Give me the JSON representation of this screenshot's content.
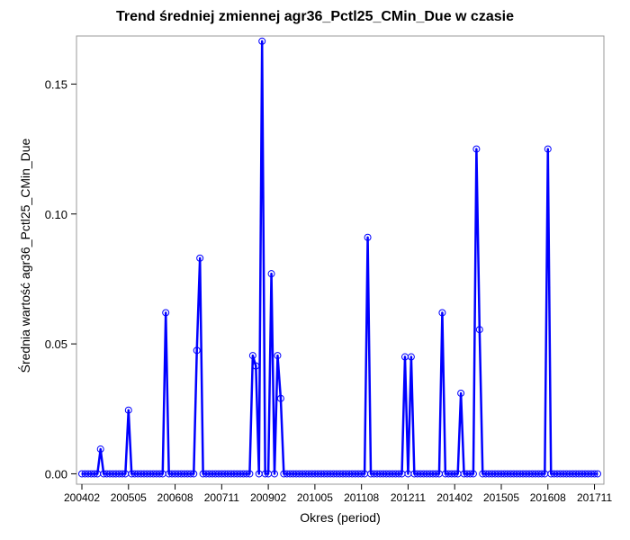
{
  "chart_data": {
    "type": "line",
    "title": "Trend średniej zmiennej agr36_Pctl25_CMin_Due w czasie",
    "xlabel": "Okres (period)",
    "ylabel": "Średnia wartość agr36_Pctl25_CMin_Due",
    "x_start": "200402",
    "x_end": "201712",
    "x_ticks": [
      "200402",
      "200505",
      "200608",
      "200711",
      "200902",
      "201005",
      "201108",
      "201211",
      "201402",
      "201505",
      "201608",
      "201711"
    ],
    "y_ticks": [
      "0.00",
      "0.05",
      "0.10",
      "0.15"
    ],
    "ylim": [
      -0.004,
      0.1685
    ],
    "grid": false,
    "series": [
      {
        "color": "#0000ff",
        "points": [
          [
            "200402",
            0
          ],
          [
            "200403",
            0
          ],
          [
            "200404",
            0
          ],
          [
            "200405",
            0
          ],
          [
            "200406",
            0
          ],
          [
            "200407",
            0
          ],
          [
            "200408",
            0.0095
          ],
          [
            "200409",
            0
          ],
          [
            "200410",
            0
          ],
          [
            "200411",
            0
          ],
          [
            "200412",
            0
          ],
          [
            "200501",
            0
          ],
          [
            "200502",
            0
          ],
          [
            "200503",
            0
          ],
          [
            "200504",
            0
          ],
          [
            "200505",
            0.0245
          ],
          [
            "200506",
            0
          ],
          [
            "200507",
            0
          ],
          [
            "200508",
            0
          ],
          [
            "200509",
            0
          ],
          [
            "200510",
            0
          ],
          [
            "200511",
            0
          ],
          [
            "200512",
            0
          ],
          [
            "200601",
            0
          ],
          [
            "200602",
            0
          ],
          [
            "200603",
            0
          ],
          [
            "200604",
            0
          ],
          [
            "200605",
            0.062
          ],
          [
            "200606",
            0
          ],
          [
            "200607",
            0
          ],
          [
            "200608",
            0
          ],
          [
            "200609",
            0
          ],
          [
            "200610",
            0
          ],
          [
            "200611",
            0
          ],
          [
            "200612",
            0
          ],
          [
            "200701",
            0
          ],
          [
            "200702",
            0
          ],
          [
            "200703",
            0.0475
          ],
          [
            "200704",
            0.083
          ],
          [
            "200705",
            0
          ],
          [
            "200706",
            0
          ],
          [
            "200707",
            0
          ],
          [
            "200708",
            0
          ],
          [
            "200709",
            0
          ],
          [
            "200710",
            0
          ],
          [
            "200711",
            0
          ],
          [
            "200712",
            0
          ],
          [
            "200801",
            0
          ],
          [
            "200802",
            0
          ],
          [
            "200803",
            0
          ],
          [
            "200804",
            0
          ],
          [
            "200805",
            0
          ],
          [
            "200806",
            0
          ],
          [
            "200807",
            0
          ],
          [
            "200808",
            0
          ],
          [
            "200809",
            0.0455
          ],
          [
            "200810",
            0.0415
          ],
          [
            "200811",
            0
          ],
          [
            "200812",
            0.1665
          ],
          [
            "200901",
            0
          ],
          [
            "200902",
            0
          ],
          [
            "200903",
            0.077
          ],
          [
            "200904",
            0
          ],
          [
            "200905",
            0.0455
          ],
          [
            "200906",
            0.029
          ],
          [
            "200907",
            0
          ],
          [
            "200908",
            0
          ],
          [
            "200909",
            0
          ],
          [
            "200910",
            0
          ],
          [
            "200911",
            0
          ],
          [
            "200912",
            0
          ],
          [
            "201001",
            0
          ],
          [
            "201002",
            0
          ],
          [
            "201003",
            0
          ],
          [
            "201004",
            0
          ],
          [
            "201005",
            0
          ],
          [
            "201006",
            0
          ],
          [
            "201007",
            0
          ],
          [
            "201008",
            0
          ],
          [
            "201009",
            0
          ],
          [
            "201010",
            0
          ],
          [
            "201011",
            0
          ],
          [
            "201012",
            0
          ],
          [
            "201101",
            0
          ],
          [
            "201102",
            0
          ],
          [
            "201103",
            0
          ],
          [
            "201104",
            0
          ],
          [
            "201105",
            0
          ],
          [
            "201106",
            0
          ],
          [
            "201107",
            0
          ],
          [
            "201108",
            0
          ],
          [
            "201109",
            0
          ],
          [
            "201110",
            0.091
          ],
          [
            "201111",
            0
          ],
          [
            "201112",
            0
          ],
          [
            "201201",
            0
          ],
          [
            "201202",
            0
          ],
          [
            "201203",
            0
          ],
          [
            "201204",
            0
          ],
          [
            "201205",
            0
          ],
          [
            "201206",
            0
          ],
          [
            "201207",
            0
          ],
          [
            "201208",
            0
          ],
          [
            "201209",
            0
          ],
          [
            "201210",
            0.045
          ],
          [
            "201211",
            0
          ],
          [
            "201212",
            0.045
          ],
          [
            "201301",
            0
          ],
          [
            "201302",
            0
          ],
          [
            "201303",
            0
          ],
          [
            "201304",
            0
          ],
          [
            "201305",
            0
          ],
          [
            "201306",
            0
          ],
          [
            "201307",
            0
          ],
          [
            "201308",
            0
          ],
          [
            "201309",
            0
          ],
          [
            "201310",
            0.062
          ],
          [
            "201311",
            0
          ],
          [
            "201312",
            0
          ],
          [
            "201401",
            0
          ],
          [
            "201402",
            0
          ],
          [
            "201403",
            0
          ],
          [
            "201404",
            0.031
          ],
          [
            "201405",
            0
          ],
          [
            "201406",
            0
          ],
          [
            "201407",
            0
          ],
          [
            "201408",
            0
          ],
          [
            "201409",
            0.125
          ],
          [
            "201410",
            0.0555
          ],
          [
            "201411",
            0
          ],
          [
            "201412",
            0
          ],
          [
            "201501",
            0
          ],
          [
            "201502",
            0
          ],
          [
            "201503",
            0
          ],
          [
            "201504",
            0
          ],
          [
            "201505",
            0
          ],
          [
            "201506",
            0
          ],
          [
            "201507",
            0
          ],
          [
            "201508",
            0
          ],
          [
            "201509",
            0
          ],
          [
            "201510",
            0
          ],
          [
            "201511",
            0
          ],
          [
            "201512",
            0
          ],
          [
            "201601",
            0
          ],
          [
            "201602",
            0
          ],
          [
            "201603",
            0
          ],
          [
            "201604",
            0
          ],
          [
            "201605",
            0
          ],
          [
            "201606",
            0
          ],
          [
            "201607",
            0
          ],
          [
            "201608",
            0.125
          ],
          [
            "201609",
            0
          ],
          [
            "201610",
            0
          ],
          [
            "201611",
            0
          ],
          [
            "201612",
            0
          ],
          [
            "201701",
            0
          ],
          [
            "201702",
            0
          ],
          [
            "201703",
            0
          ],
          [
            "201704",
            0
          ],
          [
            "201705",
            0
          ],
          [
            "201706",
            0
          ],
          [
            "201707",
            0
          ],
          [
            "201708",
            0
          ],
          [
            "201709",
            0
          ],
          [
            "201710",
            0
          ],
          [
            "201711",
            0
          ],
          [
            "201712",
            0
          ]
        ]
      }
    ]
  }
}
